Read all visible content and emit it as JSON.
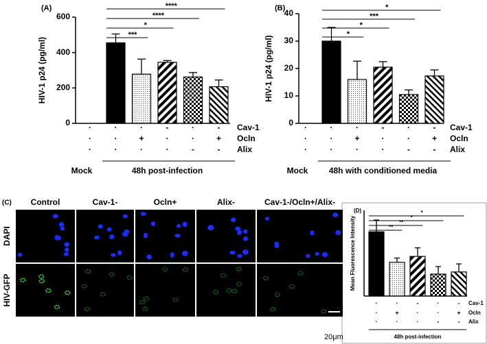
{
  "chart_data": [
    {
      "type": "bar",
      "panel_label": "(A)",
      "y_label": "HIV-1 p24 (pg/ml)",
      "color": "#000000",
      "values": [
        0,
        455,
        278,
        345,
        262,
        207
      ],
      "errors": [
        null,
        50,
        85,
        10,
        25,
        38
      ],
      "ylim": [
        0,
        600
      ],
      "yticks": [
        0,
        200,
        400,
        600
      ],
      "sign_rows": [
        {
          "name": "Cav-1",
          "signs": [
            "·",
            "·",
            "·",
            "-",
            "·",
            "-"
          ]
        },
        {
          "name": "Ocln",
          "signs": [
            "·",
            "·",
            "+",
            "·",
            "·",
            "+"
          ]
        },
        {
          "name": "Alix",
          "signs": [
            "·",
            "·",
            "·",
            "·",
            "-",
            "-"
          ]
        }
      ],
      "group_labels": [
        "Mock",
        "48h post-infection"
      ],
      "comparisons": [
        {
          "from": 1,
          "to": 2,
          "label": "***"
        },
        {
          "from": 1,
          "to": 3,
          "label": "*"
        },
        {
          "from": 1,
          "to": 4,
          "label": "****"
        },
        {
          "from": 1,
          "to": 5,
          "label": "****"
        }
      ]
    },
    {
      "type": "bar",
      "panel_label": "(B)",
      "y_label": "HIV-1 p24 (pg/ml)",
      "color": "#000000",
      "values": [
        0,
        30,
        16,
        20.5,
        10.5,
        17.3
      ],
      "errors": [
        null,
        5,
        6.7,
        2,
        1.7,
        2.2
      ],
      "ylim": [
        0,
        40
      ],
      "yticks": [
        0,
        10,
        20,
        30,
        40
      ],
      "sign_rows": [
        {
          "name": "Cav-1",
          "signs": [
            "·",
            "·",
            "·",
            "-",
            "·",
            "-"
          ]
        },
        {
          "name": "Ocln",
          "signs": [
            "·",
            "·",
            "+",
            "·",
            "·",
            "+"
          ]
        },
        {
          "name": "Alix",
          "signs": [
            "·",
            "·",
            "·",
            "·",
            "-",
            "-"
          ]
        }
      ],
      "group_labels": [
        "Mock",
        "48h with conditioned media"
      ],
      "comparisons": [
        {
          "from": 1,
          "to": 2,
          "label": "*"
        },
        {
          "from": 1,
          "to": 3,
          "label": "*"
        },
        {
          "from": 1,
          "to": 4,
          "label": "***"
        },
        {
          "from": 1,
          "to": 5,
          "label": "*"
        }
      ]
    },
    {
      "type": "bar",
      "panel_label": "(D)",
      "y_label": "Mean Fluorescence Intensity",
      "color": "#000000",
      "values": [
        1.2,
        0.63,
        0.74,
        0.41,
        0.45
      ],
      "errors": [
        0.22,
        0.08,
        0.16,
        0.14,
        0.15
      ],
      "ylim": [
        0,
        1.6
      ],
      "sign_rows": [
        {
          "name": "Cav-1",
          "signs": [
            "·",
            "·",
            "-",
            "·",
            "-"
          ]
        },
        {
          "name": "Ocln",
          "signs": [
            "·",
            "+",
            "·",
            "·",
            "+"
          ]
        },
        {
          "name": "Alix",
          "signs": [
            "·",
            "·",
            "·",
            "-",
            "-"
          ]
        }
      ],
      "group_labels": [
        "48h post-infection"
      ],
      "comparisons": [
        {
          "from": 0,
          "to": 1,
          "label": "**"
        },
        {
          "from": 0,
          "to": 2,
          "label": "**"
        },
        {
          "from": 0,
          "to": 3,
          "label": "*"
        },
        {
          "from": 0,
          "to": 4,
          "label": "*"
        }
      ]
    }
  ],
  "microscopy": {
    "panel_label": "(C)",
    "columns": [
      "Control",
      "Cav-1-",
      "Ocln+",
      "Alix-",
      "Cav-1-/Ocln+/Alix-"
    ],
    "rows": [
      "DAPI",
      "HIV-GFP"
    ],
    "scale_bar": "20μm"
  }
}
